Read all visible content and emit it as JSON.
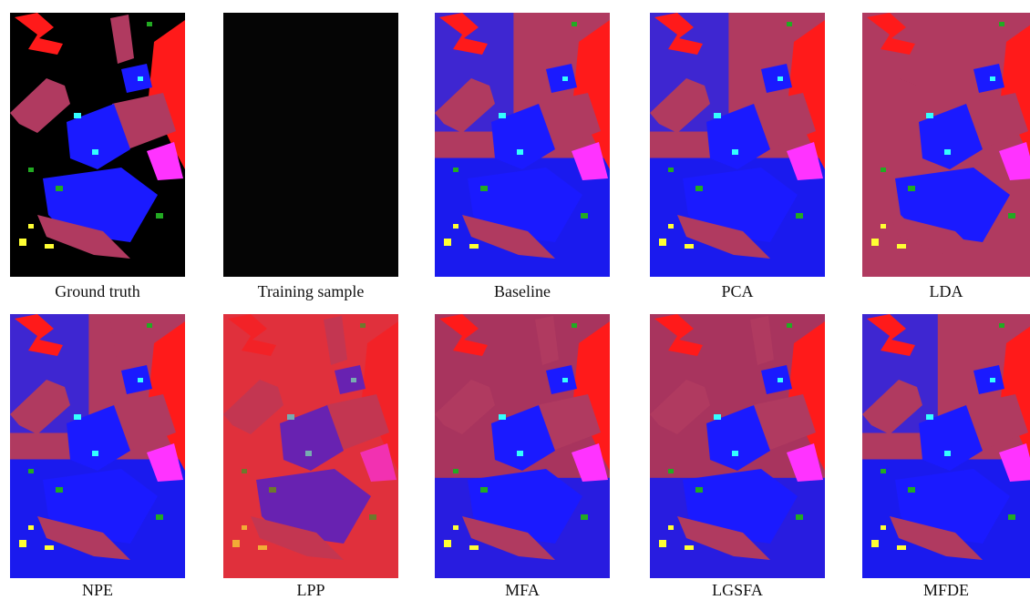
{
  "figure": {
    "captions": [
      "Ground truth",
      "Training sample",
      "Baseline",
      "PCA",
      "LDA",
      "NPE",
      "LPP",
      "MFA",
      "LGSFA",
      "MFDE"
    ]
  }
}
